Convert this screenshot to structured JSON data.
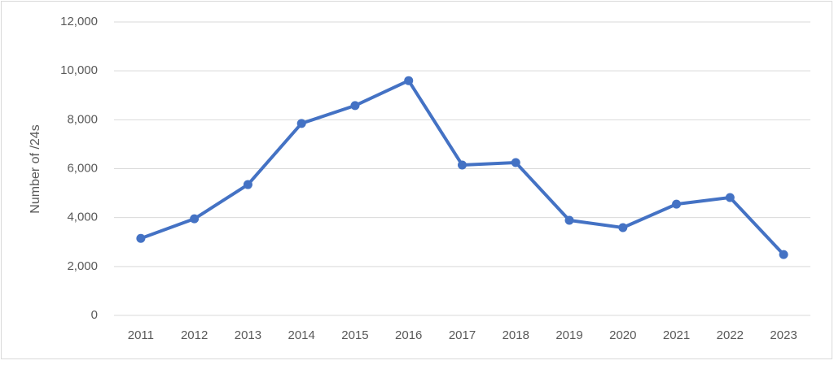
{
  "chart_data": {
    "type": "line",
    "y_label": "Number of /24s",
    "categories": [
      "2011",
      "2012",
      "2013",
      "2014",
      "2015",
      "2016",
      "2017",
      "2018",
      "2019",
      "2020",
      "2021",
      "2022",
      "2023"
    ],
    "series": [
      {
        "name": "Number of /24s",
        "color": "#4472c4",
        "values": [
          3150,
          3950,
          5350,
          7850,
          8580,
          9600,
          6150,
          6250,
          3890,
          3590,
          4550,
          4820,
          2490
        ]
      }
    ],
    "ylim": [
      0,
      12000
    ],
    "yticks": [
      0,
      {
        "value": 2000,
        "label": "2,000"
      },
      {
        "value": 4000,
        "label": "4,000"
      },
      {
        "value": 6000,
        "label": "6,000"
      },
      {
        "value": 8000,
        "label": "8,000"
      },
      {
        "value": 10000,
        "label": "10,000"
      },
      {
        "value": 12000,
        "label": "12,000"
      }
    ],
    "grid": true
  }
}
